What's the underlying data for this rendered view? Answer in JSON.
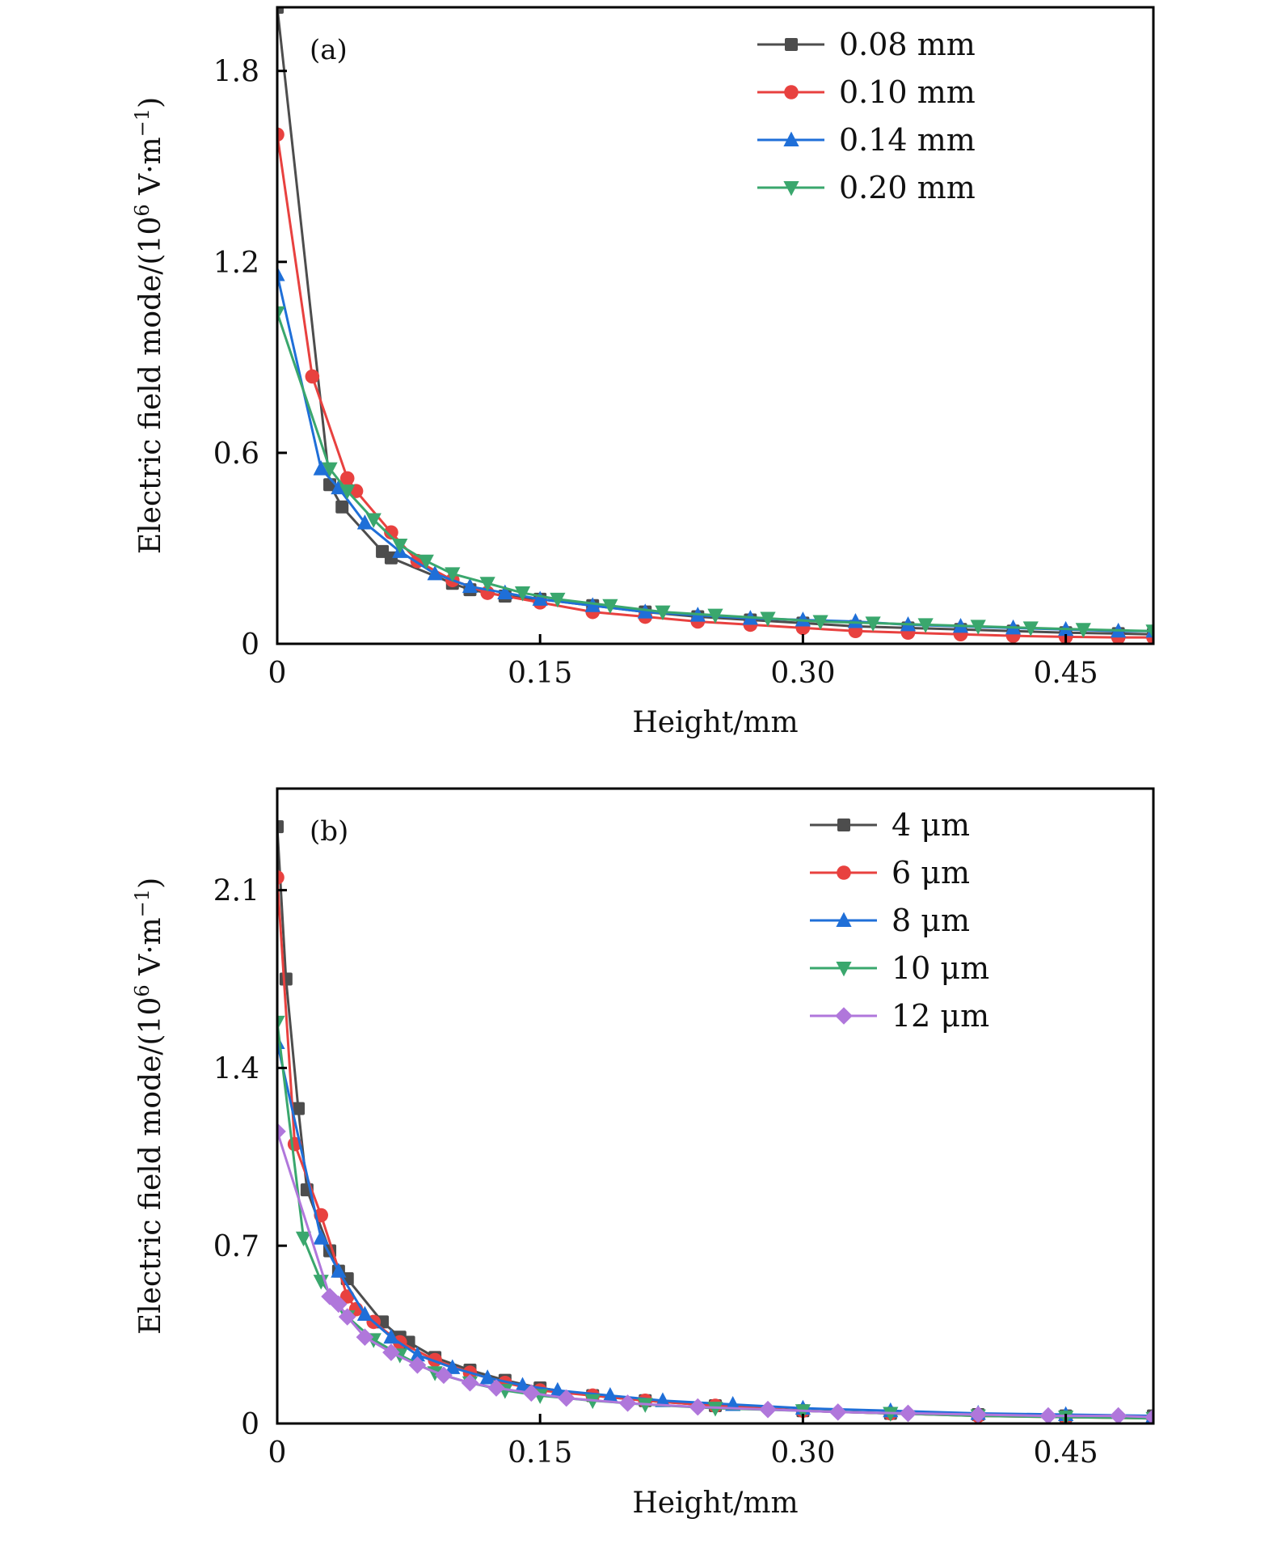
{
  "chart_data": [
    {
      "type": "line",
      "panel_label": "(a)",
      "xlabel": "Height/mm",
      "ylabel": "Electric field mode/(10",
      "ylabel_exp": "6",
      "ylabel_unit": " V·m",
      "ylabel_unit_exp": "−1",
      "ylabel_close": ")",
      "xlim": [
        0,
        0.5
      ],
      "ylim": [
        0,
        2.0
      ],
      "xticks": [
        0,
        0.15,
        0.3,
        0.45
      ],
      "xtick_labels": [
        "0",
        "0.15",
        "0.30",
        "0.45"
      ],
      "yticks": [
        0,
        0.6,
        1.2,
        1.8
      ],
      "ytick_labels": [
        "0",
        "0.6",
        "1.2",
        "1.8"
      ],
      "legend_position": "top-right",
      "grid": false,
      "series": [
        {
          "name": "0.08 mm",
          "color": "#4d4d4d",
          "marker": "square",
          "x": [
            0,
            0.03,
            0.037,
            0.06,
            0.065,
            0.1,
            0.11,
            0.13,
            0.15,
            0.18,
            0.21,
            0.24,
            0.27,
            0.3,
            0.33,
            0.36,
            0.39,
            0.42,
            0.45,
            0.48,
            0.5
          ],
          "y": [
            2.0,
            0.5,
            0.43,
            0.29,
            0.27,
            0.19,
            0.17,
            0.15,
            0.14,
            0.12,
            0.1,
            0.085,
            0.075,
            0.065,
            0.055,
            0.05,
            0.045,
            0.04,
            0.035,
            0.032,
            0.03
          ]
        },
        {
          "name": "0.10 mm",
          "color": "#e8413f",
          "marker": "circle",
          "x": [
            0,
            0.02,
            0.04,
            0.045,
            0.065,
            0.08,
            0.1,
            0.12,
            0.15,
            0.18,
            0.21,
            0.24,
            0.27,
            0.3,
            0.33,
            0.36,
            0.39,
            0.42,
            0.45,
            0.48,
            0.5
          ],
          "y": [
            1.6,
            0.84,
            0.52,
            0.48,
            0.35,
            0.26,
            0.2,
            0.16,
            0.13,
            0.1,
            0.085,
            0.07,
            0.06,
            0.05,
            0.04,
            0.035,
            0.03,
            0.025,
            0.022,
            0.02,
            0.02
          ]
        },
        {
          "name": "0.14 mm",
          "color": "#1f6fd8",
          "marker": "triangle-up",
          "x": [
            0,
            0.025,
            0.035,
            0.05,
            0.07,
            0.09,
            0.11,
            0.13,
            0.15,
            0.18,
            0.21,
            0.24,
            0.27,
            0.3,
            0.33,
            0.36,
            0.39,
            0.42,
            0.45,
            0.48,
            0.5
          ],
          "y": [
            1.16,
            0.55,
            0.49,
            0.38,
            0.29,
            0.22,
            0.18,
            0.16,
            0.14,
            0.12,
            0.1,
            0.09,
            0.08,
            0.075,
            0.07,
            0.06,
            0.055,
            0.05,
            0.045,
            0.04,
            0.04
          ]
        },
        {
          "name": "0.20 mm",
          "color": "#3aa76d",
          "marker": "triangle-down",
          "x": [
            0,
            0.03,
            0.04,
            0.055,
            0.07,
            0.085,
            0.1,
            0.12,
            0.14,
            0.16,
            0.19,
            0.22,
            0.25,
            0.28,
            0.31,
            0.34,
            0.37,
            0.4,
            0.43,
            0.46,
            0.5
          ],
          "y": [
            1.04,
            0.55,
            0.48,
            0.39,
            0.31,
            0.26,
            0.22,
            0.19,
            0.16,
            0.14,
            0.12,
            0.1,
            0.09,
            0.08,
            0.07,
            0.065,
            0.06,
            0.055,
            0.05,
            0.045,
            0.04
          ]
        }
      ]
    },
    {
      "type": "line",
      "panel_label": "(b)",
      "xlabel": "Height/mm",
      "ylabel": "Electric field mode/(10",
      "ylabel_exp": "6",
      "ylabel_unit": " V·m",
      "ylabel_unit_exp": "−1",
      "ylabel_close": ")",
      "xlim": [
        0,
        0.5
      ],
      "ylim": [
        0,
        2.5
      ],
      "xticks": [
        0,
        0.15,
        0.3,
        0.45
      ],
      "xtick_labels": [
        "0",
        "0.15",
        "0.30",
        "0.45"
      ],
      "yticks": [
        0,
        0.7,
        1.4,
        2.1
      ],
      "ytick_labels": [
        "0",
        "0.7",
        "1.4",
        "2.1"
      ],
      "legend_position": "top-right",
      "grid": false,
      "series": [
        {
          "name": "4 μm",
          "color": "#4d4d4d",
          "marker": "square",
          "x": [
            0,
            0.005,
            0.012,
            0.017,
            0.03,
            0.035,
            0.04,
            0.06,
            0.07,
            0.075,
            0.09,
            0.11,
            0.13,
            0.15,
            0.18,
            0.21,
            0.25,
            0.3,
            0.35,
            0.4,
            0.45,
            0.5
          ],
          "y": [
            2.35,
            1.75,
            1.24,
            0.92,
            0.68,
            0.6,
            0.57,
            0.4,
            0.34,
            0.32,
            0.26,
            0.21,
            0.17,
            0.14,
            0.11,
            0.09,
            0.07,
            0.05,
            0.04,
            0.035,
            0.03,
            0.03
          ]
        },
        {
          "name": "6 μm",
          "color": "#e8413f",
          "marker": "circle",
          "x": [
            0,
            0.01,
            0.025,
            0.04,
            0.045,
            0.055,
            0.07,
            0.09,
            0.11,
            0.13,
            0.15,
            0.18,
            0.21,
            0.25,
            0.3,
            0.35,
            0.4,
            0.45,
            0.5
          ],
          "y": [
            2.15,
            1.1,
            0.82,
            0.5,
            0.45,
            0.4,
            0.32,
            0.25,
            0.2,
            0.16,
            0.13,
            0.11,
            0.09,
            0.07,
            0.05,
            0.04,
            0.03,
            0.025,
            0.02
          ]
        },
        {
          "name": "8 μm",
          "color": "#1f6fd8",
          "marker": "triangle-up",
          "x": [
            0,
            0.025,
            0.035,
            0.05,
            0.065,
            0.08,
            0.1,
            0.12,
            0.14,
            0.16,
            0.19,
            0.22,
            0.26,
            0.3,
            0.35,
            0.4,
            0.45,
            0.5
          ],
          "y": [
            1.5,
            0.73,
            0.6,
            0.43,
            0.34,
            0.27,
            0.22,
            0.18,
            0.15,
            0.13,
            0.11,
            0.09,
            0.075,
            0.06,
            0.05,
            0.04,
            0.035,
            0.03
          ]
        },
        {
          "name": "10 μm",
          "color": "#3aa76d",
          "marker": "triangle-down",
          "x": [
            0,
            0.015,
            0.025,
            0.04,
            0.055,
            0.07,
            0.09,
            0.11,
            0.13,
            0.15,
            0.18,
            0.21,
            0.25,
            0.3,
            0.35,
            0.4,
            0.45,
            0.5
          ],
          "y": [
            1.58,
            0.73,
            0.56,
            0.42,
            0.33,
            0.27,
            0.2,
            0.16,
            0.13,
            0.11,
            0.09,
            0.075,
            0.06,
            0.05,
            0.04,
            0.03,
            0.025,
            0.02
          ]
        },
        {
          "name": "12 μm",
          "color": "#b077db",
          "marker": "diamond",
          "x": [
            0,
            0.03,
            0.035,
            0.04,
            0.05,
            0.065,
            0.08,
            0.095,
            0.11,
            0.125,
            0.145,
            0.165,
            0.2,
            0.24,
            0.28,
            0.32,
            0.36,
            0.4,
            0.44,
            0.48,
            0.5
          ],
          "y": [
            1.15,
            0.5,
            0.47,
            0.42,
            0.34,
            0.28,
            0.23,
            0.19,
            0.16,
            0.14,
            0.12,
            0.1,
            0.08,
            0.065,
            0.055,
            0.045,
            0.04,
            0.035,
            0.03,
            0.03,
            0.025
          ]
        }
      ]
    }
  ]
}
